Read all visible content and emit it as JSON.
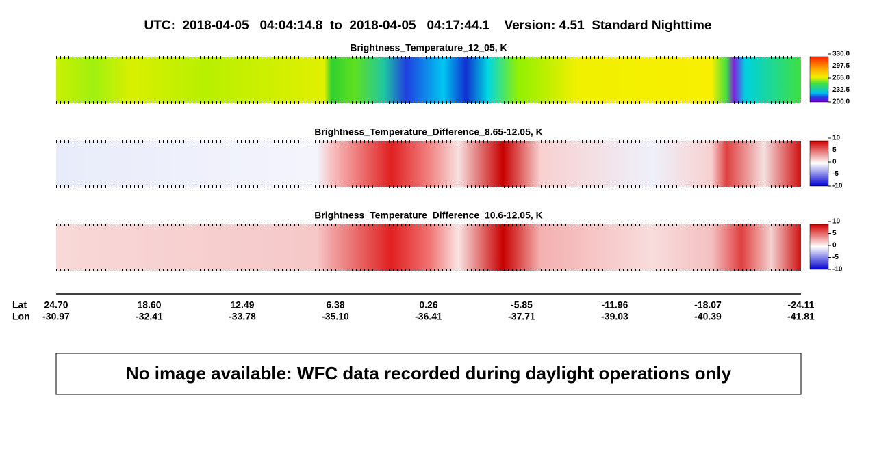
{
  "header": {
    "title": "UTC:  2018-04-05   04:04:14.8  to  2018-04-05   04:17:44.1    Version: 4.51  Standard Nighttime"
  },
  "panels": [
    {
      "title": "Brightness_Temperature_12_05, K",
      "colorbar": [
        "330.0",
        "297.5",
        "265.0",
        "232.5",
        "200.0"
      ]
    },
    {
      "title": "Brightness_Temperature_Difference_8.65-12.05, K",
      "colorbar": [
        "10",
        "5",
        "0",
        "-5",
        "-10"
      ]
    },
    {
      "title": "Brightness_Temperature_Difference_10.6-12.05, K",
      "colorbar": [
        "10",
        "5",
        "0",
        "-5",
        "-10"
      ]
    }
  ],
  "axis": {
    "lat_label": "Lat",
    "lon_label": "Lon",
    "lat": [
      "24.70",
      "18.60",
      "12.49",
      "6.38",
      "0.26",
      "-5.85",
      "-11.96",
      "-18.07",
      "-24.11"
    ],
    "lon": [
      "-30.97",
      "-32.41",
      "-33.78",
      "-35.10",
      "-36.41",
      "-37.71",
      "-39.03",
      "-40.39",
      "-41.81"
    ]
  },
  "notice": "No image available: WFC data recorded during daylight operations only"
}
